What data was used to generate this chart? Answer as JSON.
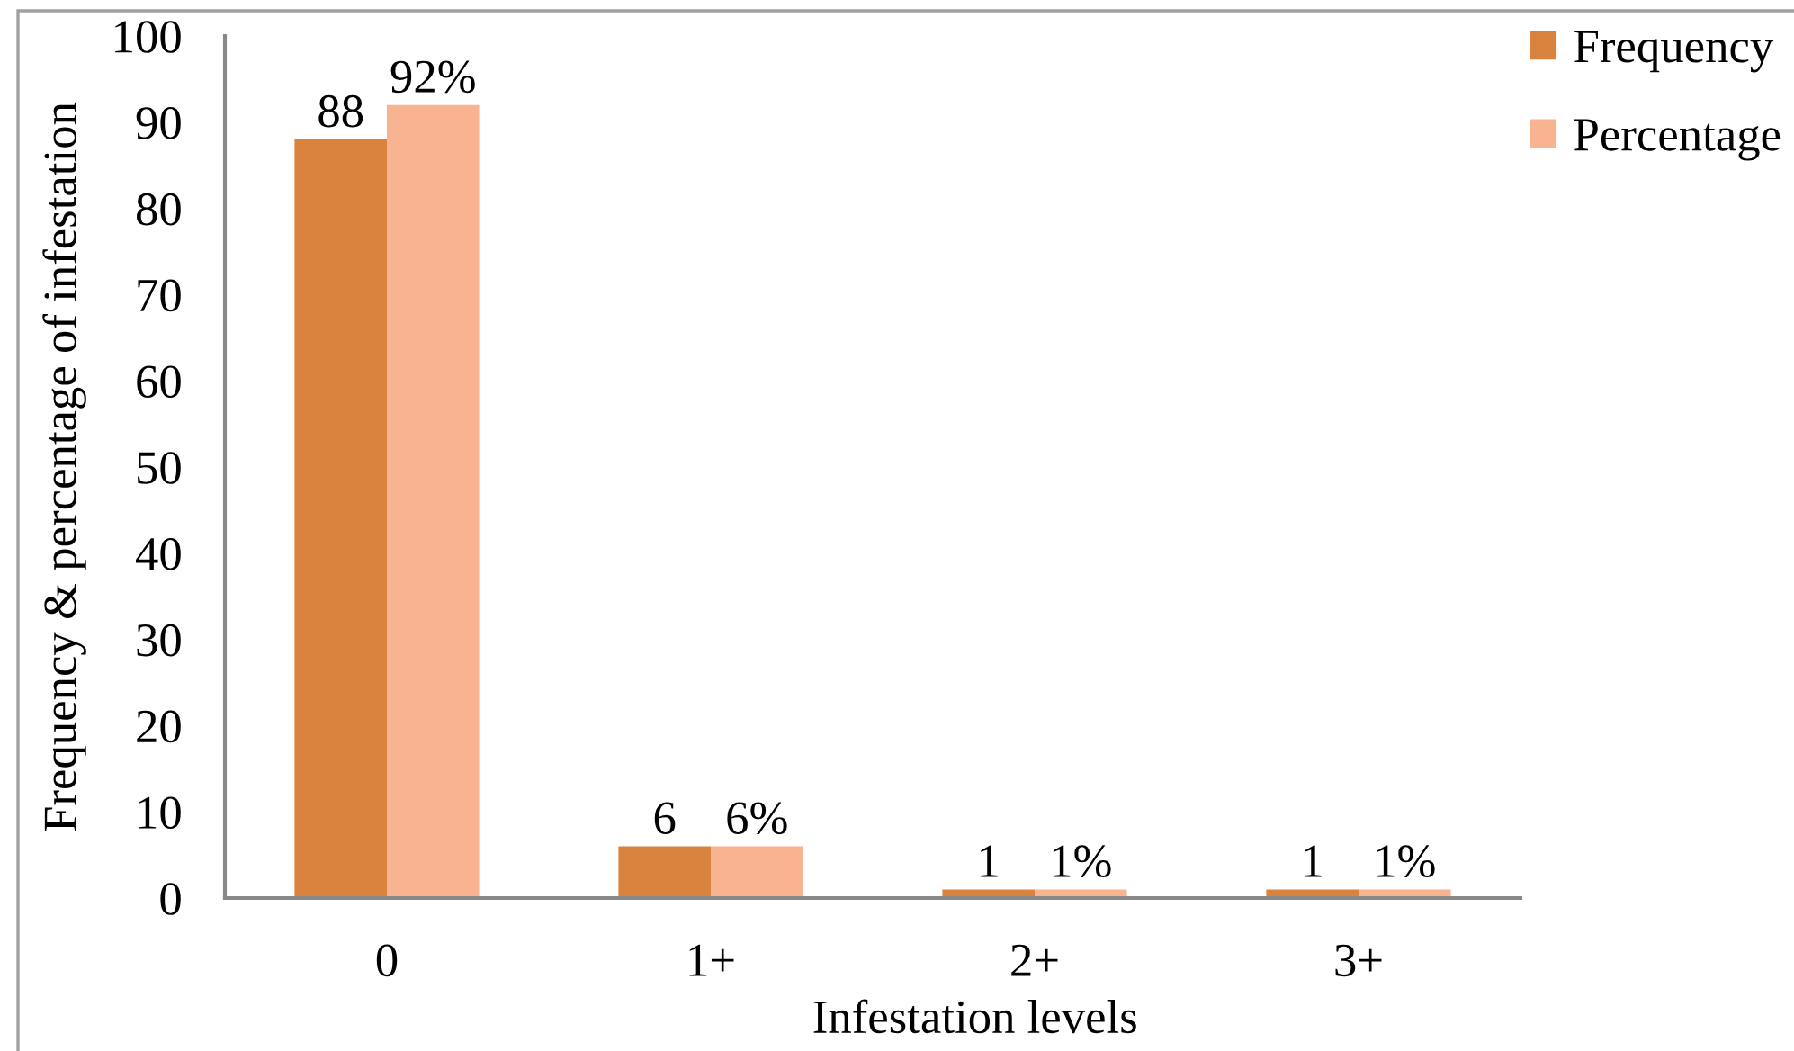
{
  "chart_data": {
    "type": "bar",
    "xlabel": "Infestation levels",
    "ylabel": "Frequency & percentage of infestation",
    "categories": [
      "0",
      "1+",
      "2+",
      "3+"
    ],
    "series": [
      {
        "name": "Frequency",
        "color": "#d9833e",
        "values": [
          88,
          6,
          1,
          1
        ],
        "value_labels": [
          "88",
          "6",
          "1",
          "1"
        ]
      },
      {
        "name": "Percentage",
        "color": "#f8b490",
        "values": [
          92,
          6,
          1,
          1
        ],
        "value_labels": [
          "92%",
          "6%",
          "1%",
          "1%"
        ]
      }
    ],
    "ylim": [
      0,
      100
    ],
    "yticks": [
      0,
      10,
      20,
      30,
      40,
      50,
      60,
      70,
      80,
      90,
      100
    ],
    "legend": "top right"
  }
}
